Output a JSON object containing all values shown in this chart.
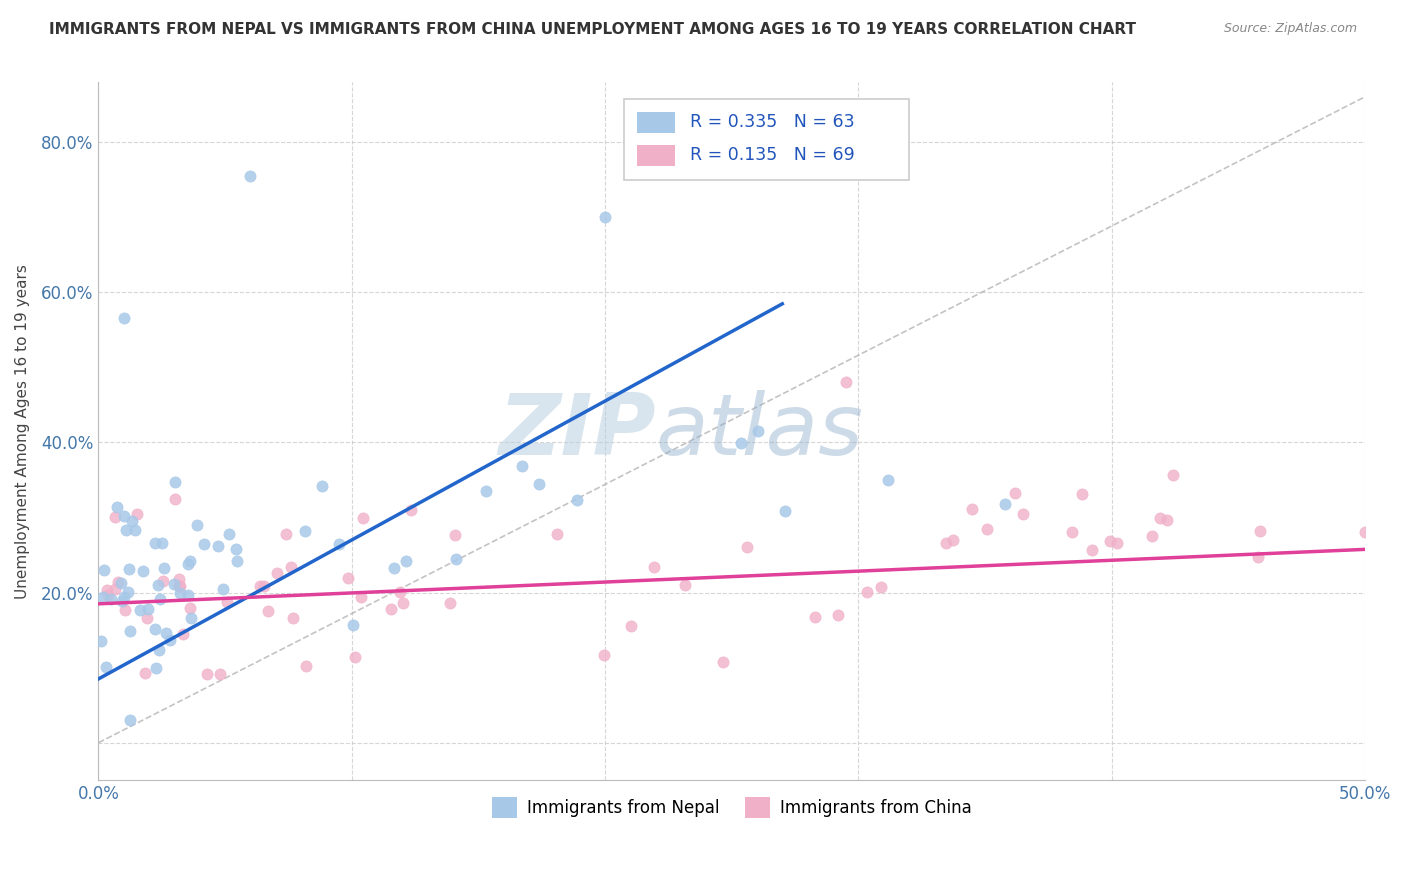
{
  "title": "IMMIGRANTS FROM NEPAL VS IMMIGRANTS FROM CHINA UNEMPLOYMENT AMONG AGES 16 TO 19 YEARS CORRELATION CHART",
  "source": "Source: ZipAtlas.com",
  "ylabel": "Unemployment Among Ages 16 to 19 years",
  "xlim": [
    0.0,
    0.5
  ],
  "ylim": [
    -0.05,
    0.88
  ],
  "xtick_positions": [
    0.0,
    0.1,
    0.2,
    0.3,
    0.4,
    0.5
  ],
  "ytick_positions": [
    0.0,
    0.2,
    0.4,
    0.6,
    0.8
  ],
  "xticklabels": [
    "0.0%",
    "",
    "",
    "",
    "",
    "50.0%"
  ],
  "yticklabels": [
    "",
    "20.0%",
    "40.0%",
    "60.0%",
    "80.0%"
  ],
  "nepal_color": "#a8c8e8",
  "china_color": "#f0b0c8",
  "nepal_line_color": "#2266cc",
  "china_line_color": "#e0409a",
  "nepal_R": 0.335,
  "nepal_N": 63,
  "china_R": 0.135,
  "china_N": 69,
  "background_color": "#ffffff",
  "grid_color": "#cccccc",
  "title_fontsize": 11,
  "source_fontsize": 9,
  "legend_color": "#2255bb",
  "diag_color": "#aaaaaa",
  "watermark_zip_color": "#b8d0e0",
  "watermark_atlas_color": "#90b0cc"
}
